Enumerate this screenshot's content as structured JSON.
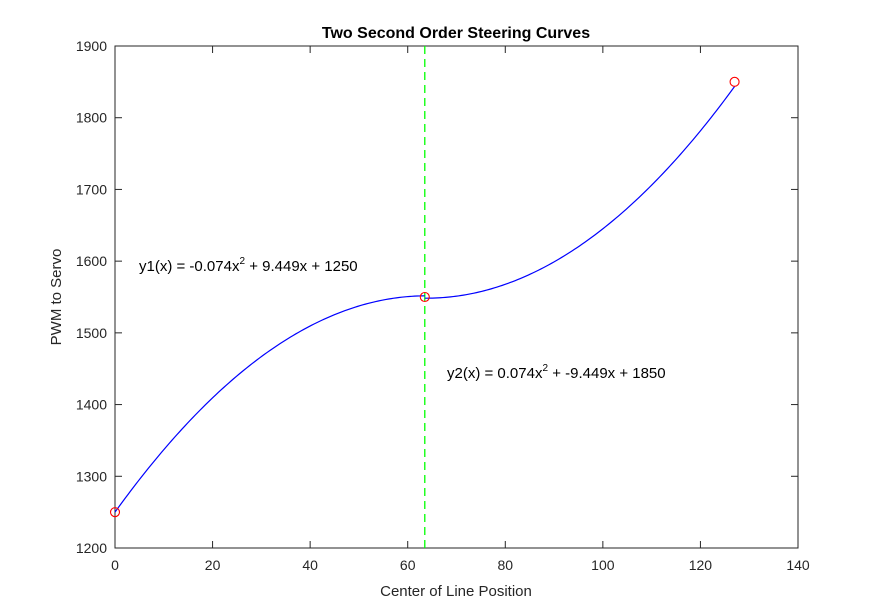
{
  "chart_data": {
    "type": "line",
    "title": "Two Second Order Steering Curves",
    "xlabel": "Center of Line Position",
    "ylabel": "PWM to Servo",
    "xlim": [
      0,
      140
    ],
    "ylim": [
      1200,
      1900
    ],
    "xticks": [
      0,
      20,
      40,
      60,
      80,
      100,
      120,
      140
    ],
    "yticks": [
      1200,
      1300,
      1400,
      1500,
      1600,
      1700,
      1800,
      1900
    ],
    "xtick_labels": [
      "0",
      "20",
      "40",
      "60",
      "80",
      "100",
      "120",
      "140"
    ],
    "ytick_labels": [
      "1200",
      "1300",
      "1400",
      "1500",
      "1600",
      "1700",
      "1800",
      "1900"
    ],
    "grid": false,
    "series": [
      {
        "equation": "y1(x) = -0.074x^2 + 9.449x + 1250",
        "x_range": [
          0,
          63.5
        ],
        "a": -0.074,
        "b": 9.449,
        "c": 1250,
        "color": "#0000ff"
      },
      {
        "equation": "y2(x) = 0.074x^2 + -9.449x + 1850",
        "x_range": [
          63.5,
          127
        ],
        "a": 0.074,
        "b": -9.449,
        "c": 1850,
        "color": "#0000ff"
      }
    ],
    "markers": [
      {
        "x": 0,
        "y": 1250
      },
      {
        "x": 63.5,
        "y": 1550
      },
      {
        "x": 127,
        "y": 1850
      }
    ],
    "marker_color": "#ff0000",
    "vertical_line": {
      "x": 63.5,
      "color": "#00ff00",
      "style": "dashed"
    },
    "annotations": [
      {
        "prefix": "y1(x) = -0.074x",
        "sup": "2",
        "suffix": " + 9.449x + 1250"
      },
      {
        "prefix": "y2(x) = 0.074x",
        "sup": "2",
        "suffix": " + -9.449x + 1850"
      }
    ]
  }
}
